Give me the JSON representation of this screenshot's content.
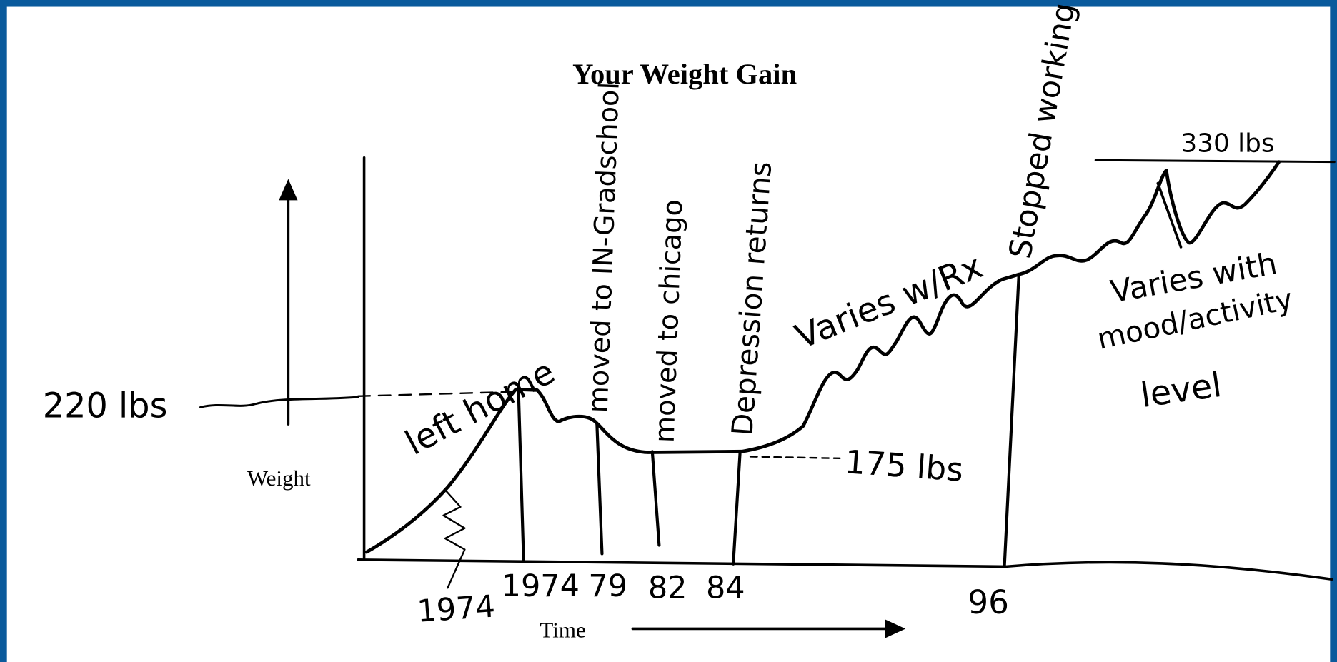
{
  "title": "Your Weight Gain",
  "axes": {
    "y_label": "Weight",
    "x_label": "Time"
  },
  "level_labels": [
    "220 lbs",
    "175 lbs",
    "330 lbs"
  ],
  "year_labels": [
    "1974",
    "1974",
    "79",
    "82",
    "84",
    "96"
  ],
  "events": [
    "left home",
    "moved to IN-Gradschool",
    "moved to chicago",
    "Depression returns",
    "Stopped working"
  ],
  "notes": {
    "rx": "Varies w/Rx",
    "mood": [
      "Varies with",
      "mood/activity",
      "level"
    ]
  }
}
